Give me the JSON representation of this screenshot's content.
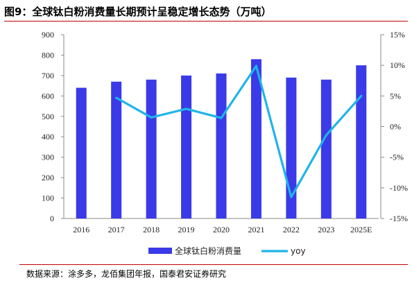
{
  "title": "图9：全球钛白粉消费量长期预计呈稳定增长态势（万吨）",
  "source": "数据来源：涂多多，龙佰集团年报，国泰君安证券研究",
  "chart_data": {
    "type": "bar",
    "title": "图9：全球钛白粉消费量长期预计呈稳定增长态势（万吨）",
    "categories": [
      "2016",
      "2017",
      "2018",
      "2019",
      "2020",
      "2021",
      "2022",
      "2023",
      "2025E"
    ],
    "series": [
      {
        "name": "全球钛白粉消费量",
        "type": "bar",
        "axis": "left",
        "color": "#3a3ae8",
        "values": [
          640,
          670,
          680,
          700,
          710,
          780,
          690,
          680,
          750
        ]
      },
      {
        "name": "yoy",
        "type": "line",
        "axis": "right",
        "color": "#1fb4e8",
        "values": [
          null,
          4.7,
          1.5,
          2.9,
          1.4,
          9.9,
          -11.5,
          -1.4,
          5.0
        ]
      }
    ],
    "y_left": {
      "ylim": [
        0,
        900
      ],
      "ticks": [
        "0",
        "100",
        "200",
        "300",
        "400",
        "500",
        "600",
        "700",
        "800",
        "900"
      ]
    },
    "y_right": {
      "ylim": [
        -15,
        15
      ],
      "ticks": [
        "-15%",
        "-10%",
        "-5%",
        "0%",
        "5%",
        "10%",
        "15%"
      ]
    },
    "legend": "bottom",
    "grid": false
  }
}
